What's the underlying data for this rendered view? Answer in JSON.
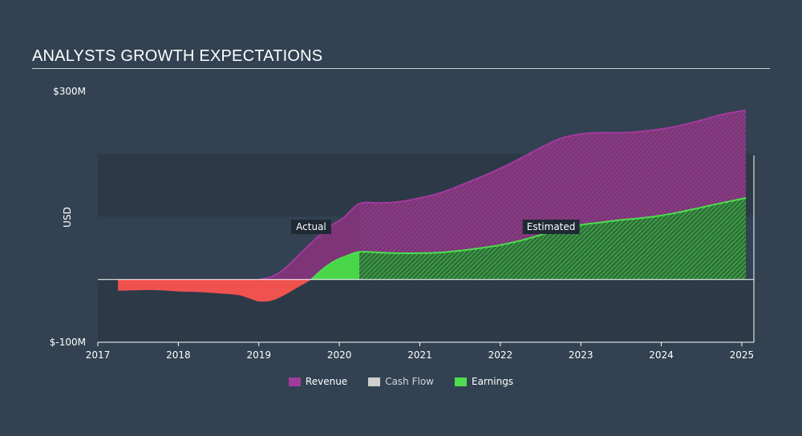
{
  "page": {
    "title": "ANALYSTS GROWTH EXPECTATIONS"
  },
  "chart_data": {
    "type": "area",
    "ylabel": "USD",
    "xlabel": "",
    "ylim": [
      -100,
      300
    ],
    "xlim": [
      2017,
      2025.15
    ],
    "y_ticks": [
      {
        "value": 300,
        "label": "$300M"
      },
      {
        "value": -100,
        "label": "$-100M"
      }
    ],
    "x_ticks": [
      {
        "value": 2017,
        "label": "2017"
      },
      {
        "value": 2018,
        "label": "2018"
      },
      {
        "value": 2019,
        "label": "2019"
      },
      {
        "value": 2020,
        "label": "2020"
      },
      {
        "value": 2021,
        "label": "2021"
      },
      {
        "value": 2022,
        "label": "2022"
      },
      {
        "value": 2023,
        "label": "2023"
      },
      {
        "value": 2024,
        "label": "2024"
      },
      {
        "value": 2025,
        "label": "2025"
      }
    ],
    "bands": [
      {
        "from": 100,
        "to": 200,
        "color": "#2c3a48"
      },
      {
        "from": -100,
        "to": 0,
        "color": "#2c3a48"
      }
    ],
    "actual_end": 2020.25,
    "annotations": [
      {
        "label": "Actual",
        "x": 2019.65,
        "y": 84
      },
      {
        "label": "Estimated",
        "x": 2022.63,
        "y": 84
      }
    ],
    "series": [
      {
        "name": "Revenue",
        "color": "#9b3c93",
        "points": [
          [
            2019.0,
            0
          ],
          [
            2019.15,
            4
          ],
          [
            2019.3,
            15
          ],
          [
            2019.45,
            33
          ],
          [
            2019.6,
            52
          ],
          [
            2019.75,
            70
          ],
          [
            2019.9,
            86
          ],
          [
            2020.05,
            98
          ],
          [
            2020.25,
            121
          ],
          [
            2020.5,
            122
          ],
          [
            2020.75,
            124
          ],
          [
            2021.0,
            130
          ],
          [
            2021.25,
            138
          ],
          [
            2021.5,
            150
          ],
          [
            2021.75,
            163
          ],
          [
            2022.0,
            177
          ],
          [
            2022.25,
            193
          ],
          [
            2022.5,
            210
          ],
          [
            2022.75,
            225
          ],
          [
            2023.0,
            232
          ],
          [
            2023.25,
            234
          ],
          [
            2023.5,
            234
          ],
          [
            2023.75,
            236
          ],
          [
            2024.0,
            240
          ],
          [
            2024.25,
            246
          ],
          [
            2024.5,
            254
          ],
          [
            2024.75,
            263
          ],
          [
            2025.05,
            270
          ]
        ]
      },
      {
        "name": "Cash Flow",
        "color": "#cfcfcf",
        "points": []
      },
      {
        "name": "Earnings",
        "color": "#4ede4e",
        "negative_color": "#f0524f",
        "points": [
          [
            2017.25,
            -18
          ],
          [
            2017.5,
            -17
          ],
          [
            2017.75,
            -17
          ],
          [
            2018.0,
            -19
          ],
          [
            2018.25,
            -20
          ],
          [
            2018.5,
            -22
          ],
          [
            2018.75,
            -25
          ],
          [
            2018.9,
            -31
          ],
          [
            2019.0,
            -35
          ],
          [
            2019.15,
            -34
          ],
          [
            2019.3,
            -26
          ],
          [
            2019.45,
            -15
          ],
          [
            2019.6,
            -4
          ],
          [
            2019.65,
            0
          ],
          [
            2019.8,
            17
          ],
          [
            2019.95,
            30
          ],
          [
            2020.1,
            38
          ],
          [
            2020.25,
            44
          ],
          [
            2020.5,
            43
          ],
          [
            2020.75,
            42
          ],
          [
            2021.0,
            42
          ],
          [
            2021.25,
            43
          ],
          [
            2021.5,
            46
          ],
          [
            2021.75,
            50
          ],
          [
            2022.0,
            55
          ],
          [
            2022.25,
            62
          ],
          [
            2022.5,
            71
          ],
          [
            2022.75,
            80
          ],
          [
            2023.0,
            87
          ],
          [
            2023.25,
            91
          ],
          [
            2023.5,
            95
          ],
          [
            2023.75,
            98
          ],
          [
            2024.0,
            102
          ],
          [
            2024.25,
            108
          ],
          [
            2024.5,
            115
          ],
          [
            2024.75,
            122
          ],
          [
            2025.05,
            130
          ]
        ]
      }
    ],
    "legend": [
      {
        "name": "Revenue",
        "color": "#a23a9c"
      },
      {
        "name": "Cash Flow",
        "color": "#cfcfcf"
      },
      {
        "name": "Earnings",
        "color": "#4ede4e"
      }
    ]
  }
}
